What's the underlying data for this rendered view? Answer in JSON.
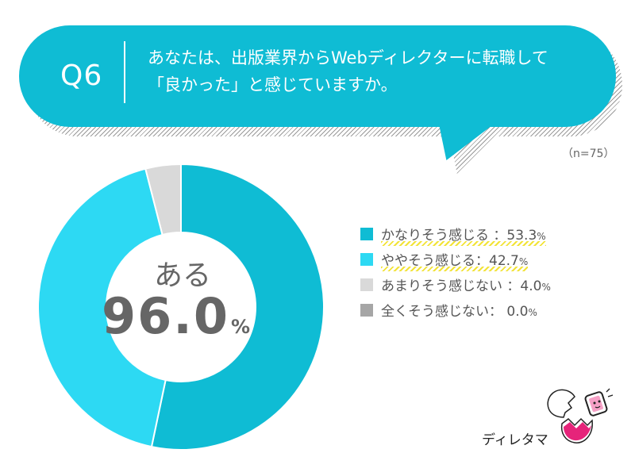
{
  "question": {
    "number": "Q6",
    "line1": "あなたは、出版業界からWebディレクターに転職して",
    "line2": "「良かった」と感じていますか。"
  },
  "sample_size": "（n=75）",
  "center": {
    "label": "ある",
    "value": "96.0",
    "unit": "%"
  },
  "logo": {
    "text": "ディレタマ",
    "icon": "egg-mascot-icon"
  },
  "colors": {
    "bubble": "#0fbcd4",
    "series": [
      "#0fbcd4",
      "#2dd9f3",
      "#d9d9d9",
      "#a6a6a6"
    ],
    "highlight": "#f2e337"
  },
  "chart_data": {
    "type": "pie",
    "donut": true,
    "categories": [
      "かなりそう感じる",
      "ややそう感じる",
      "あまりそう感じない",
      "全くそう感じない"
    ],
    "values": [
      53.3,
      42.7,
      4.0,
      0.0
    ],
    "unit": "%"
  },
  "legend": [
    {
      "label": "かなりそう感じる ：",
      "value": "53.3",
      "unit": "%"
    },
    {
      "label": "ややそう感じる：",
      "value": "42.7",
      "unit": "%"
    },
    {
      "label": "あまりそう感じない ：",
      "value": "4.0",
      "unit": "%"
    },
    {
      "label": "全くそう感じない：  ",
      "value": "0.0",
      "unit": "%"
    }
  ]
}
